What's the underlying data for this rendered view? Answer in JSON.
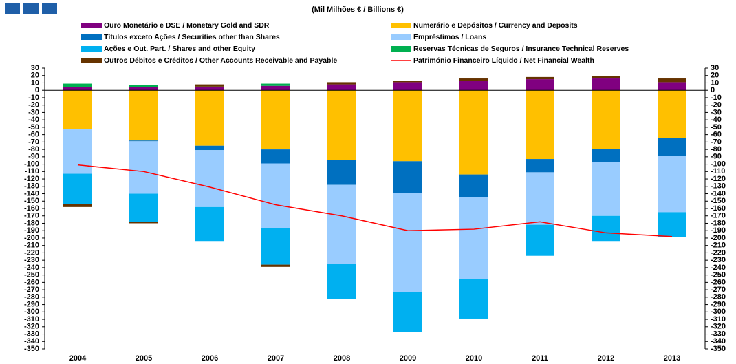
{
  "chart_data": {
    "type": "bar",
    "stacked": true,
    "title": "(Mil Milhões € / Billions €)",
    "categories": [
      "2004",
      "2005",
      "2006",
      "2007",
      "2008",
      "2009",
      "2010",
      "2011",
      "2012",
      "2013"
    ],
    "series": [
      {
        "name": "Ouro Monetário e DSE / Monetary Gold and SDR",
        "color": "#800080",
        "values": [
          4,
          4,
          4,
          6,
          8,
          11,
          13,
          15,
          16,
          11
        ]
      },
      {
        "name": "Numerário e Depósitos / Currency and Deposits",
        "color": "#ffc000",
        "values": [
          -52,
          -68,
          -75,
          -80,
          -94,
          -96,
          -114,
          -93,
          -79,
          -65
        ]
      },
      {
        "name": "Títulos exceto Ações / Securities other than Shares",
        "color": "#0070c0",
        "values": [
          -1,
          -1,
          -6,
          -19,
          -34,
          -43,
          -31,
          -18,
          -18,
          -24
        ]
      },
      {
        "name": "Empréstimos / Loans",
        "color": "#99ccff",
        "values": [
          -60,
          -71,
          -77,
          -88,
          -107,
          -134,
          -110,
          -71,
          -73,
          -76
        ]
      },
      {
        "name": "Ações e Out. Part. / Shares and other Equity",
        "color": "#00b0f0",
        "values": [
          -41,
          -38,
          -46,
          -49,
          -47,
          -54,
          -54,
          -42,
          -34,
          -34
        ]
      },
      {
        "name": "Reservas Técnicas de Seguros / Insurance Technical Reserves",
        "color": "#00b050",
        "values": [
          5,
          3,
          1,
          3,
          0,
          0,
          0,
          0,
          0,
          0
        ]
      },
      {
        "name": "Outros Débitos e Créditos / Other Accounts Receivable and Payable",
        "color": "#663300",
        "values": [
          -4,
          -2,
          3,
          -3,
          3,
          2,
          3,
          3,
          3,
          5
        ]
      },
      {
        "name": "Património Financeiro Líquido / Net Financial Wealth",
        "color": "#ff0000",
        "type": "line",
        "values": [
          -101,
          -110,
          -131,
          -155,
          -170,
          -190,
          -188,
          -178,
          -193,
          -198
        ]
      }
    ],
    "ylim": [
      -350,
      30
    ],
    "yticks": [
      30,
      20,
      10,
      0,
      -10,
      -20,
      -30,
      -40,
      -50,
      -60,
      -70,
      -80,
      -90,
      -100,
      -110,
      -120,
      -130,
      -140,
      -150,
      -160,
      -170,
      -180,
      -190,
      -200,
      -210,
      -220,
      -230,
      -240,
      -250,
      -260,
      -270,
      -280,
      -290,
      -300,
      -310,
      -320,
      -330,
      -340,
      -350
    ],
    "y2lim": [
      -350,
      30
    ],
    "y2ticks": [
      30,
      20,
      10,
      0,
      -10,
      -20,
      -30,
      -40,
      -50,
      -60,
      -70,
      -80,
      -90,
      -100,
      -110,
      -120,
      -130,
      -140,
      -150,
      -160,
      -170,
      -180,
      -190,
      -200,
      -210,
      -220,
      -230,
      -240,
      -250,
      -260,
      -270,
      -280,
      -290,
      -300,
      -310,
      -320,
      -330,
      -340,
      -350
    ],
    "grid": false
  }
}
